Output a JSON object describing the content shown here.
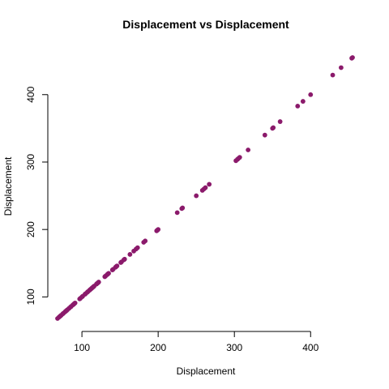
{
  "chart_data": {
    "type": "scatter",
    "title": "Displacement vs Displacement",
    "xlabel": "Displacement",
    "ylabel": "Displacement",
    "xlim": [
      68,
      455
    ],
    "ylim": [
      68,
      455
    ],
    "x_ticks": [
      100,
      200,
      300,
      400
    ],
    "y_ticks": [
      100,
      200,
      300,
      400
    ],
    "point_color": "#8B1A6B",
    "grid": false,
    "legend": "none",
    "series": [
      {
        "x": [
          68,
          70,
          71,
          72,
          73,
          75,
          76,
          78,
          79,
          80,
          81,
          83,
          85,
          86,
          88,
          89,
          90,
          91,
          97,
          98,
          100,
          101,
          104,
          105,
          107,
          108,
          110,
          111,
          112,
          113,
          114,
          115,
          116,
          119,
          120,
          121,
          122,
          130,
          131,
          133,
          134,
          135,
          140,
          141,
          144,
          145,
          146,
          151,
          152,
          155,
          156,
          163,
          168,
          171,
          173,
          181,
          183,
          198,
          199,
          200,
          225,
          231,
          232,
          250,
          258,
          260,
          262,
          267,
          302,
          304,
          305,
          307,
          318,
          340,
          350,
          351,
          360,
          383,
          390,
          400,
          429,
          440,
          454,
          455
        ],
        "y": [
          68,
          70,
          71,
          72,
          73,
          75,
          76,
          78,
          79,
          80,
          81,
          83,
          85,
          86,
          88,
          89,
          90,
          91,
          97,
          98,
          100,
          101,
          104,
          105,
          107,
          108,
          110,
          111,
          112,
          113,
          114,
          115,
          116,
          119,
          120,
          121,
          122,
          130,
          131,
          133,
          134,
          135,
          140,
          141,
          144,
          145,
          146,
          151,
          152,
          155,
          156,
          163,
          168,
          171,
          173,
          181,
          183,
          198,
          199,
          200,
          225,
          231,
          232,
          250,
          258,
          260,
          262,
          267,
          302,
          304,
          305,
          307,
          318,
          340,
          350,
          351,
          360,
          383,
          390,
          400,
          429,
          440,
          454,
          455
        ]
      }
    ]
  }
}
